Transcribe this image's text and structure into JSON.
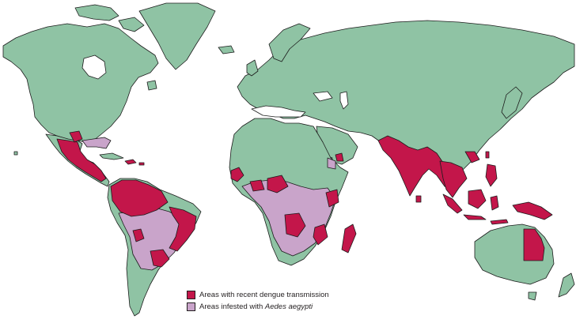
{
  "colors": {
    "ocean": "#ffffff",
    "land": "#8fc3a4",
    "border": "#1c1c1c",
    "dengue": "#c3164a",
    "aedes": "#c9a4ca"
  },
  "legend": {
    "items": [
      {
        "label": "Areas with recent dengue transmission",
        "color_key": "dengue"
      },
      {
        "label_prefix": "Areas infested with ",
        "label_italic": "Aedes aegypti",
        "color_key": "aedes"
      }
    ]
  }
}
